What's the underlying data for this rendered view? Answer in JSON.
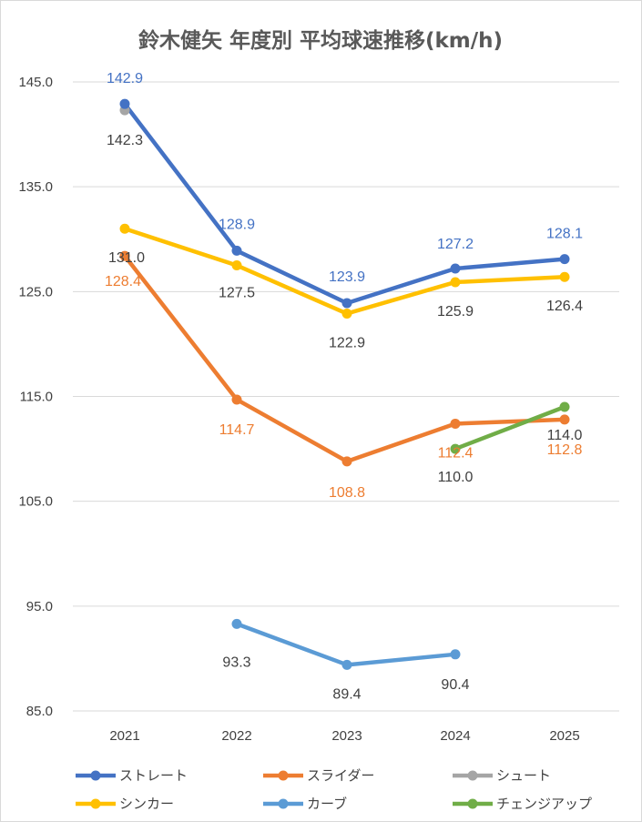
{
  "chart_data": {
    "type": "line",
    "title": "鈴木健矢 年度別 平均球速推移(km/h)",
    "xlabel": "",
    "ylabel": "",
    "categories": [
      "2021",
      "2022",
      "2023",
      "2024",
      "2025"
    ],
    "ylim": [
      85.0,
      145.0
    ],
    "yticks": [
      "85.0",
      "95.0",
      "105.0",
      "115.0",
      "125.0",
      "135.0",
      "145.0"
    ],
    "grid": "horizontal",
    "legend_position": "bottom",
    "series": [
      {
        "name": "ストレート",
        "color": "#4472C4",
        "label_color": "#4472C4",
        "values": [
          142.9,
          128.9,
          123.9,
          127.2,
          128.1
        ],
        "labels": [
          "142.9",
          "128.9",
          "123.9",
          "127.2",
          "128.1"
        ]
      },
      {
        "name": "スライダー",
        "color": "#ED7D31",
        "label_color": "#ED7D31",
        "values": [
          128.4,
          114.7,
          108.8,
          112.4,
          112.8
        ],
        "labels": [
          "128.4",
          "114.7",
          "108.8",
          "112.4",
          "112.8"
        ]
      },
      {
        "name": "シュート",
        "color": "#A5A5A5",
        "label_color": "#404040",
        "values": [
          142.3,
          null,
          null,
          null,
          null
        ],
        "labels": [
          "142.3",
          null,
          null,
          null,
          null
        ]
      },
      {
        "name": "シンカー",
        "color": "#FFC000",
        "label_color": "#404040",
        "values": [
          131.0,
          127.5,
          122.9,
          125.9,
          126.4
        ],
        "labels": [
          "131.0",
          "127.5",
          "122.9",
          "125.9",
          "126.4"
        ]
      },
      {
        "name": "カーブ",
        "color": "#5B9BD5",
        "label_color": "#404040",
        "values": [
          null,
          93.3,
          89.4,
          90.4,
          null
        ],
        "labels": [
          null,
          "93.3",
          "89.4",
          "90.4",
          null
        ]
      },
      {
        "name": "チェンジアップ",
        "color": "#70AD47",
        "label_color": "#404040",
        "values": [
          null,
          null,
          null,
          110.0,
          114.0
        ],
        "labels": [
          null,
          null,
          null,
          "110.0",
          "114.0"
        ]
      }
    ]
  }
}
